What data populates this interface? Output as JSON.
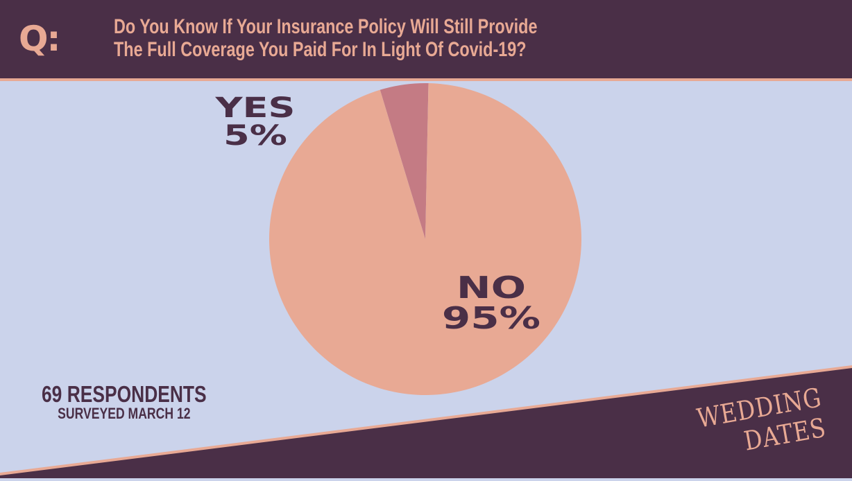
{
  "header": {
    "icon_text": "Q:",
    "question_line1": "Do You Know If Your Insurance Policy Will Still Provide",
    "question_line2": "The Full Coverage You Paid For In Light Of Covid-19?"
  },
  "chart_data": {
    "type": "pie",
    "slices": [
      {
        "label": "YES",
        "value": 5,
        "display": "5%",
        "color": "#c47b84"
      },
      {
        "label": "NO",
        "value": 95,
        "display": "95%",
        "color": "#e8a994"
      }
    ]
  },
  "footer": {
    "respondents": "69 RESPONDENTS",
    "surveyed": "SURVEYED MARCH 12",
    "logo_line1": "WEDDING",
    "logo_line2": "DATES"
  },
  "colors": {
    "background": "#cbd3eb",
    "dark": "#4a2f47",
    "accent": "#e8a994",
    "yes_slice": "#c47b84"
  }
}
